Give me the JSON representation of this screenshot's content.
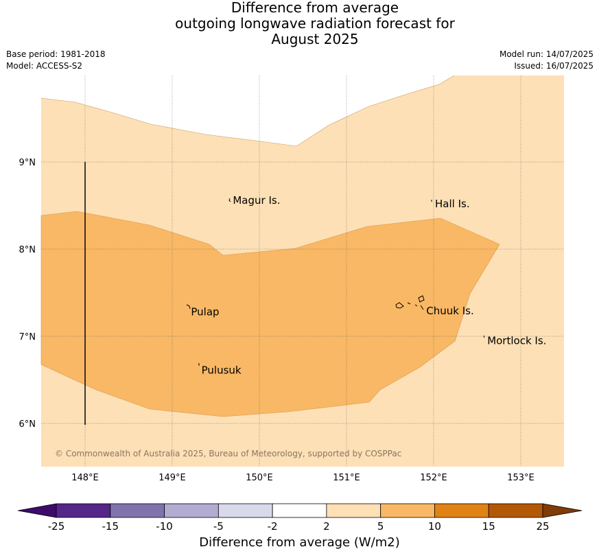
{
  "title": {
    "line1": "Difference from average",
    "line2": "outgoing longwave radiation forecast for",
    "line3": "August 2025"
  },
  "meta": {
    "base_period": "Base period: 1981-2018",
    "model": "Model: ACCESS-S2",
    "model_run": "Model run: 14/07/2025",
    "issued": "Issued: 16/07/2025"
  },
  "map": {
    "lon_ticks": [
      {
        "value": 148,
        "label": "148°E"
      },
      {
        "value": 149,
        "label": "149°E"
      },
      {
        "value": 150,
        "label": "150°E"
      },
      {
        "value": 151,
        "label": "151°E"
      },
      {
        "value": 152,
        "label": "152°E"
      },
      {
        "value": 153,
        "label": "153°E"
      }
    ],
    "lat_ticks": [
      {
        "value": 6,
        "label": "6°N"
      },
      {
        "value": 7,
        "label": "7°N"
      },
      {
        "value": 8,
        "label": "8°N"
      },
      {
        "value": 9,
        "label": "9°N"
      }
    ],
    "places": [
      {
        "name": "Magur Is.",
        "lon": 149.68,
        "lat": 8.56
      },
      {
        "name": "Hall Is.",
        "lon": 152.0,
        "lat": 8.52
      },
      {
        "name": "Pulap",
        "lon": 149.2,
        "lat": 7.28
      },
      {
        "name": "Chuuk Is.",
        "lon": 151.9,
        "lat": 7.29
      },
      {
        "name": "Mortlock Is.",
        "lon": 152.6,
        "lat": 6.95
      },
      {
        "name": "Pulusuk",
        "lon": 149.32,
        "lat": 6.61
      }
    ],
    "copyright": "© Commonwealth of Australia 2025, Bureau of Meteorology, supported by COSPPac",
    "colors": {
      "band_2_5": "#fde0b6",
      "band_5_10": "#f9b865",
      "grid": "#555555"
    }
  },
  "colorbar": {
    "ticks": [
      "-25",
      "-15",
      "-10",
      "-5",
      "-2",
      "2",
      "5",
      "10",
      "15",
      "25"
    ],
    "colors": [
      "#3f0b6b",
      "#542788",
      "#8073ac",
      "#b2abd2",
      "#d8daeb",
      "#ffffff",
      "#fde0b6",
      "#f9b865",
      "#e08214",
      "#b35806",
      "#7f3b08"
    ],
    "label": "Difference from average (W/m2)"
  }
}
